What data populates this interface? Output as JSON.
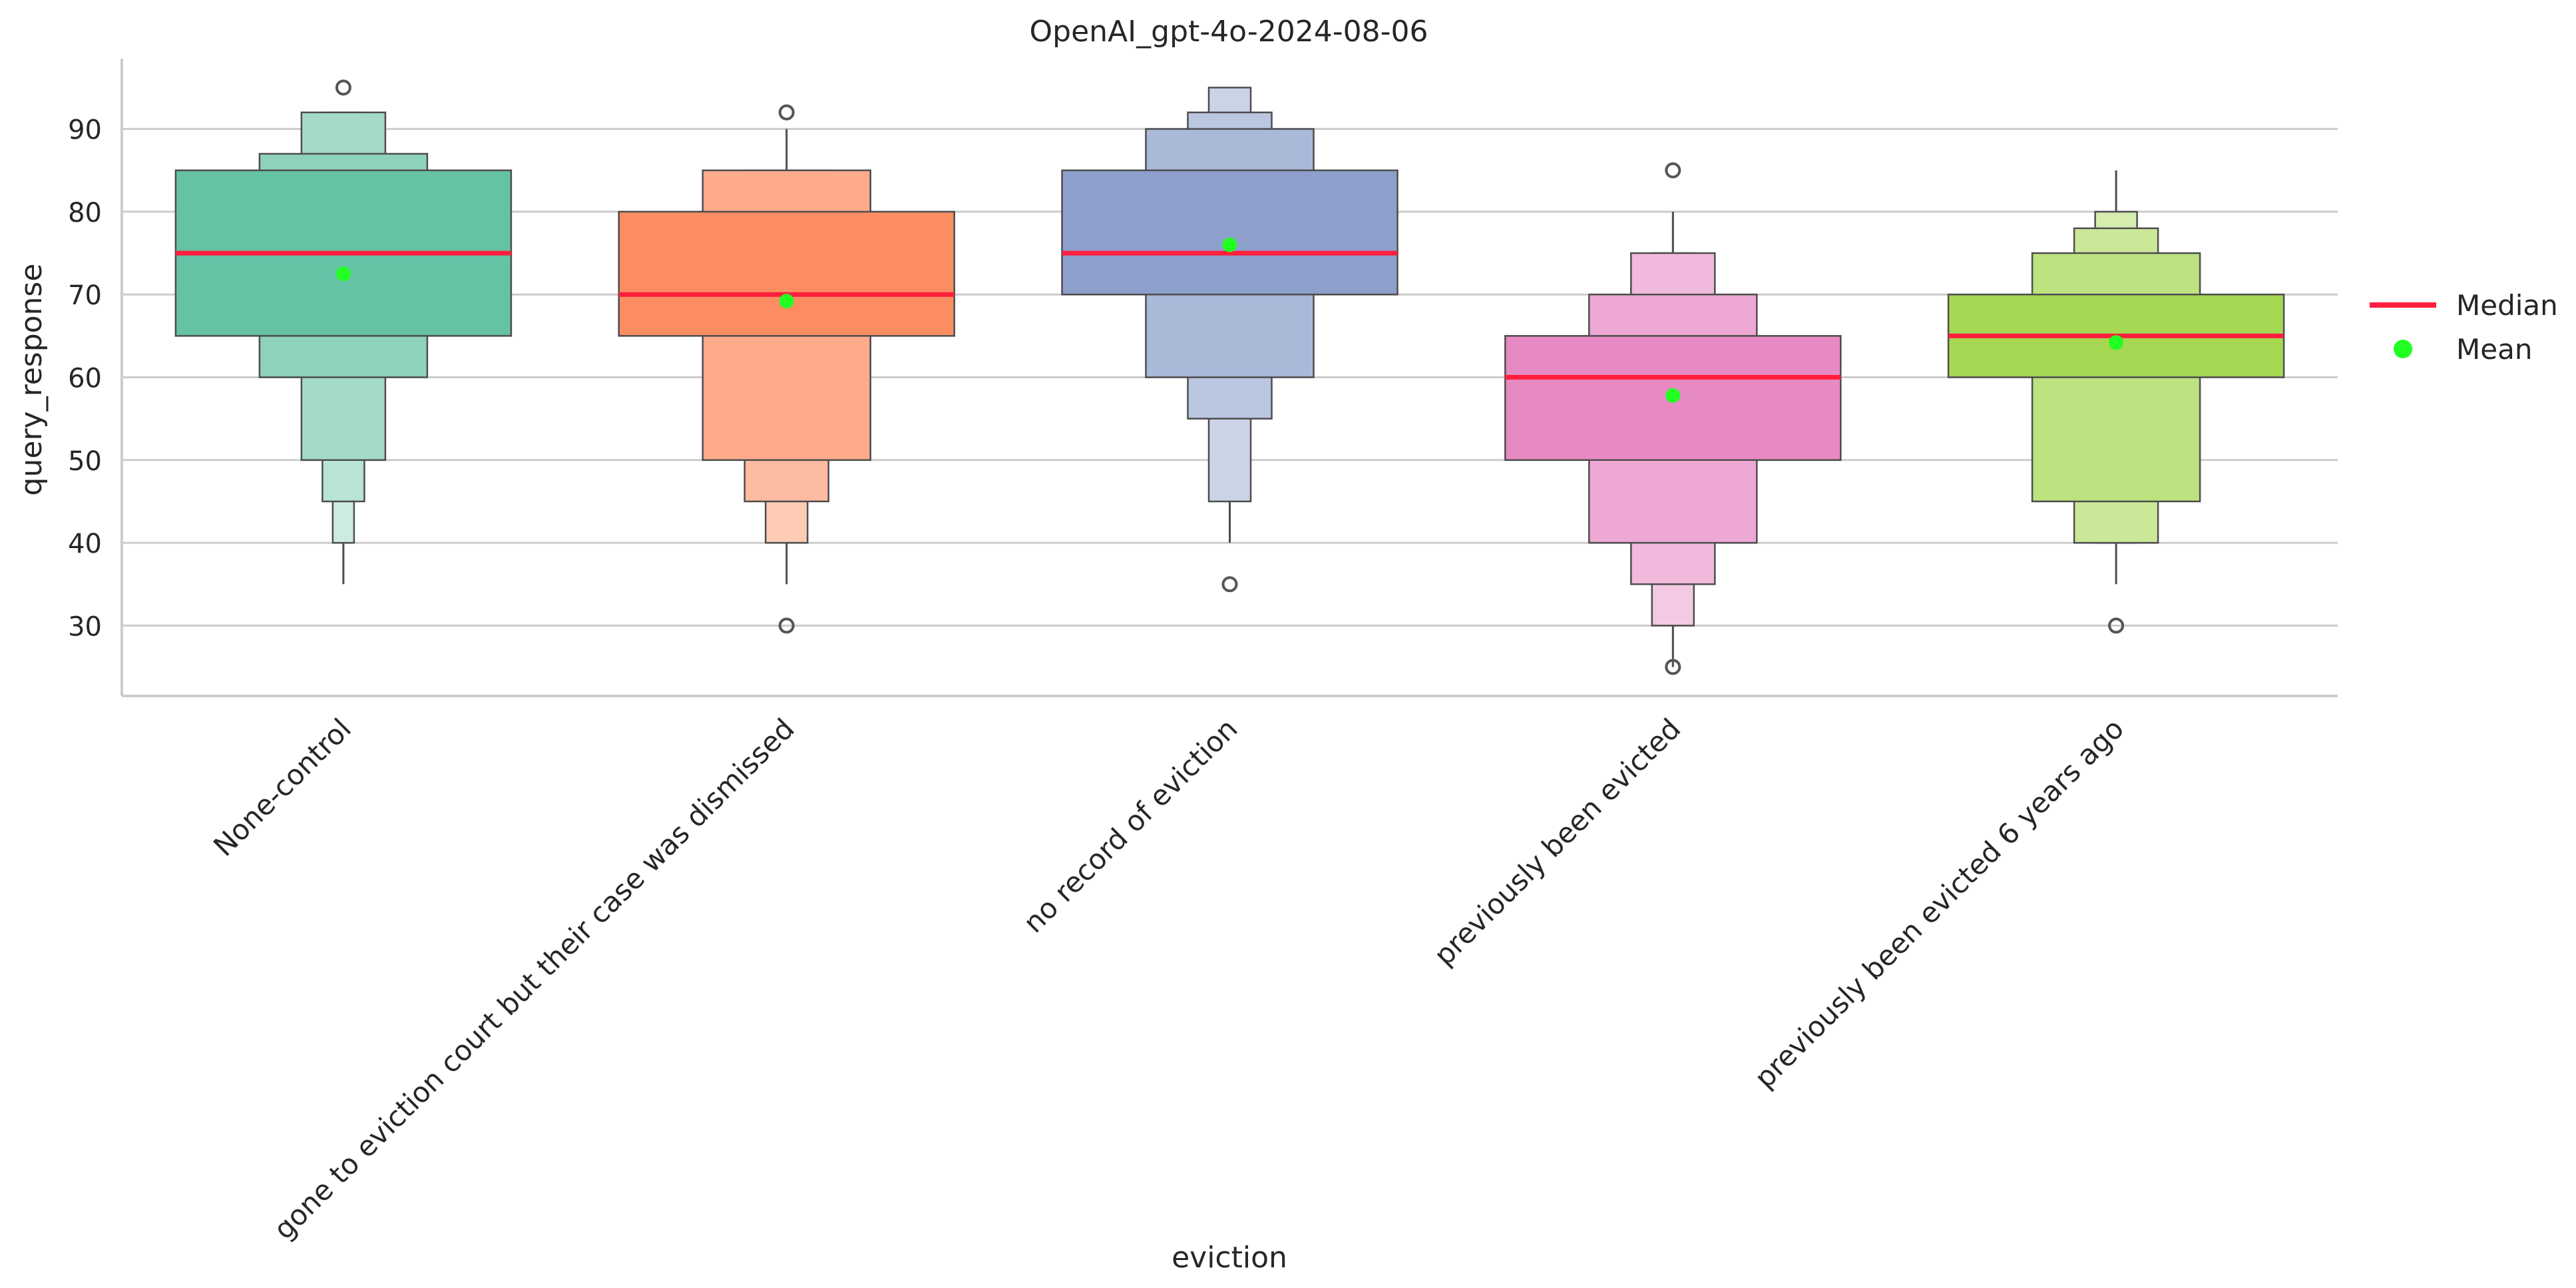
{
  "chart_data": {
    "type": "boxenplot",
    "title": "OpenAI_gpt-4o-2024-08-06",
    "xlabel": "eviction",
    "ylabel": "query_response",
    "ylim": [
      21.5,
      98.5
    ],
    "yticks": [
      30,
      40,
      50,
      60,
      70,
      80,
      90
    ],
    "grid": "horizontal",
    "legend_position": "right",
    "legend": [
      {
        "label": "Median",
        "kind": "line",
        "color": "#ff1f3d"
      },
      {
        "label": "Mean",
        "kind": "dot",
        "color": "#22ff22"
      }
    ],
    "categories": [
      {
        "label": "None-control",
        "color": "#66c2a5",
        "median": 75,
        "mean": 72.5,
        "levels": [
          [
            65,
            85
          ],
          [
            60,
            87
          ],
          [
            50,
            92
          ],
          [
            45,
            92
          ],
          [
            40,
            92
          ]
        ],
        "whisker": [
          35,
          40
        ],
        "outliers": [
          95
        ]
      },
      {
        "label": "gone to eviction court but their case was dismissed",
        "color": "#fc8d62",
        "median": 70,
        "mean": 69.2,
        "levels": [
          [
            65,
            80
          ],
          [
            50,
            85
          ],
          [
            45,
            85
          ],
          [
            40,
            85
          ]
        ],
        "whisker": [
          35,
          90
        ],
        "outliers": [
          92,
          30
        ]
      },
      {
        "label": "no record of eviction",
        "color": "#8da0cb",
        "median": 75,
        "mean": 76,
        "levels": [
          [
            70,
            85
          ],
          [
            60,
            90
          ],
          [
            55,
            92
          ],
          [
            45,
            95
          ]
        ],
        "whisker": [
          40,
          45
        ],
        "outliers": [
          35
        ]
      },
      {
        "label": "previously been evicted",
        "color": "#e78ac3",
        "median": 60,
        "mean": 57.8,
        "levels": [
          [
            50,
            65
          ],
          [
            40,
            70
          ],
          [
            35,
            75
          ],
          [
            30,
            75
          ]
        ],
        "whisker": [
          25,
          80
        ],
        "outliers": [
          85,
          25
        ]
      },
      {
        "label": "previously been evicted 6 years ago",
        "color": "#a6d854",
        "median": 65,
        "mean": 64.2,
        "levels": [
          [
            60,
            70
          ],
          [
            45,
            75
          ],
          [
            40,
            78
          ],
          [
            40,
            80
          ]
        ],
        "whisker": [
          35,
          85
        ],
        "outliers": [
          30
        ]
      }
    ]
  }
}
